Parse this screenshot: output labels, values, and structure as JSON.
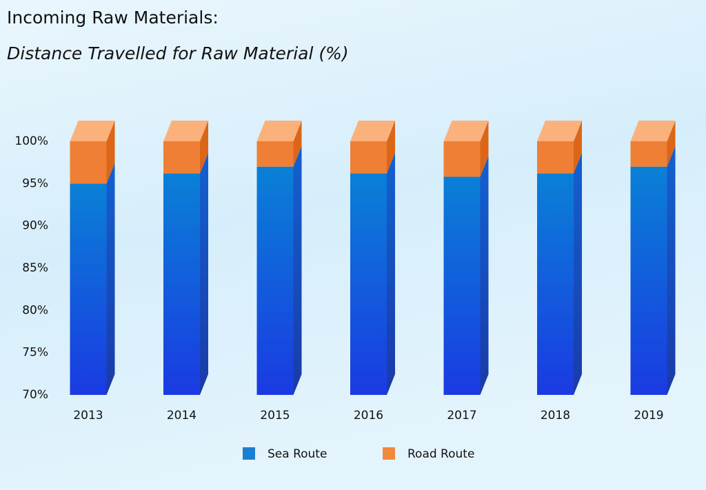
{
  "chart_data": {
    "type": "stacked-bar-3d",
    "title": "Incoming Raw Materials:",
    "subtitle": "Distance Travelled for Raw Material (%)",
    "categories": [
      "2013",
      "2014",
      "2015",
      "2016",
      "2017",
      "2018",
      "2019"
    ],
    "series": [
      {
        "name": "Sea Route",
        "color": "#1a7fd0",
        "values": [
          95.0,
          96.2,
          97.0,
          96.2,
          95.8,
          96.2,
          97.0
        ]
      },
      {
        "name": "Road Route",
        "color": "#f08a3c",
        "values": [
          5.0,
          3.8,
          3.0,
          3.8,
          4.2,
          3.8,
          3.0
        ]
      }
    ],
    "ylim": [
      70,
      100
    ],
    "yticks": [
      {
        "value": 70,
        "label": "70%"
      },
      {
        "value": 75,
        "label": "75%"
      },
      {
        "value": 80,
        "label": "80%"
      },
      {
        "value": 85,
        "label": "85%"
      },
      {
        "value": 90,
        "label": "90%"
      },
      {
        "value": 95,
        "label": "95%"
      },
      {
        "value": 100,
        "label": "100%"
      }
    ],
    "legend": "bottom"
  }
}
